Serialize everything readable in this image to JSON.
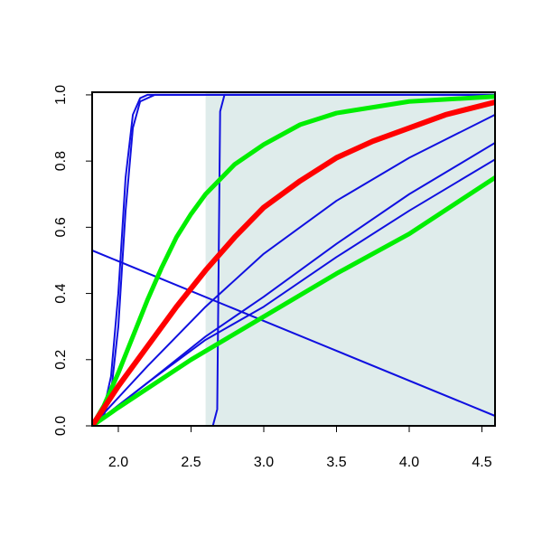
{
  "chart_data": {
    "type": "line",
    "xlim": [
      1.82,
      4.59
    ],
    "ylim": [
      0,
      1.008
    ],
    "xticks": [
      {
        "value": 2.0,
        "label": "2.0"
      },
      {
        "value": 2.5,
        "label": "2.5"
      },
      {
        "value": 3.0,
        "label": "3.0"
      },
      {
        "value": 3.5,
        "label": "3.5"
      },
      {
        "value": 4.0,
        "label": "4.0"
      },
      {
        "value": 4.5,
        "label": "4.5"
      }
    ],
    "yticks": [
      {
        "value": 0,
        "label": "0.0"
      },
      {
        "value": 0.2,
        "label": "0.2"
      },
      {
        "value": 0.4,
        "label": "0.4"
      },
      {
        "value": 0.6,
        "label": "0.6"
      },
      {
        "value": 0.8,
        "label": "0.8"
      },
      {
        "value": 1.0,
        "label": "1.0"
      }
    ],
    "shade_from": 2.6,
    "shade_color": "#dfeceb",
    "series": [
      {
        "color": "#1010e0",
        "width": 2,
        "x": [
          1.82,
          2.2,
          2.6,
          3.0,
          3.5,
          4.0,
          4.59
        ],
        "values": [
          0,
          0.18,
          0.36,
          0.52,
          0.68,
          0.81,
          0.94
        ]
      },
      {
        "color": "#1010e0",
        "width": 2,
        "x": [
          1.82,
          2.2,
          2.6,
          3.0,
          3.5,
          4.0,
          4.59
        ],
        "values": [
          0,
          0.13,
          0.27,
          0.39,
          0.55,
          0.7,
          0.855
        ]
      },
      {
        "color": "#1010e0",
        "width": 2,
        "x": [
          1.82,
          2.2,
          2.6,
          3.0,
          3.5,
          4.0,
          4.59
        ],
        "values": [
          0,
          0.13,
          0.26,
          0.36,
          0.51,
          0.65,
          0.805
        ]
      },
      {
        "color": "#1010e0",
        "width": 2,
        "x": [
          1.82,
          4.59
        ],
        "values": [
          0.53,
          0.03
        ]
      },
      {
        "color": "#1010e0",
        "width": 2,
        "x": [
          1.82,
          1.9,
          1.95,
          2.0,
          2.05,
          2.1,
          2.15,
          2.25,
          4.59
        ],
        "values": [
          0,
          0.03,
          0.1,
          0.3,
          0.65,
          0.9,
          0.98,
          1.0,
          1.0
        ]
      },
      {
        "color": "#1010e0",
        "width": 2,
        "x": [
          1.82,
          1.9,
          1.95,
          2.0,
          2.05,
          2.1,
          2.15,
          2.2,
          4.59
        ],
        "values": [
          0,
          0.05,
          0.15,
          0.4,
          0.75,
          0.94,
          0.99,
          1.0,
          1.0
        ]
      },
      {
        "color": "#1010e0",
        "width": 2,
        "x": [
          1.82,
          2.65,
          2.68,
          2.69,
          2.7,
          2.73,
          4.59
        ],
        "values": [
          0,
          0,
          0.05,
          0.5,
          0.95,
          1.0,
          1.0
        ]
      },
      {
        "color": "#00ee00",
        "width": 5,
        "x": [
          1.82,
          2.0,
          2.5,
          3.0,
          3.5,
          4.0,
          4.59
        ],
        "values": [
          0,
          0.055,
          0.2,
          0.33,
          0.46,
          0.58,
          0.75
        ]
      },
      {
        "color": "#00ee00",
        "width": 5,
        "x": [
          1.82,
          1.9,
          2.0,
          2.1,
          2.2,
          2.3,
          2.4,
          2.5,
          2.6,
          2.8,
          3.0,
          3.25,
          3.5,
          4.0,
          4.59
        ],
        "values": [
          0,
          0.06,
          0.16,
          0.27,
          0.38,
          0.48,
          0.57,
          0.64,
          0.7,
          0.79,
          0.85,
          0.91,
          0.945,
          0.98,
          0.995
        ]
      },
      {
        "color": "#ff0000",
        "width": 6,
        "x": [
          1.82,
          2.0,
          2.2,
          2.4,
          2.6,
          2.8,
          3.0,
          3.25,
          3.5,
          3.75,
          4.0,
          4.25,
          4.59
        ],
        "values": [
          0,
          0.12,
          0.24,
          0.36,
          0.47,
          0.57,
          0.66,
          0.74,
          0.81,
          0.86,
          0.9,
          0.94,
          0.978
        ]
      }
    ]
  }
}
